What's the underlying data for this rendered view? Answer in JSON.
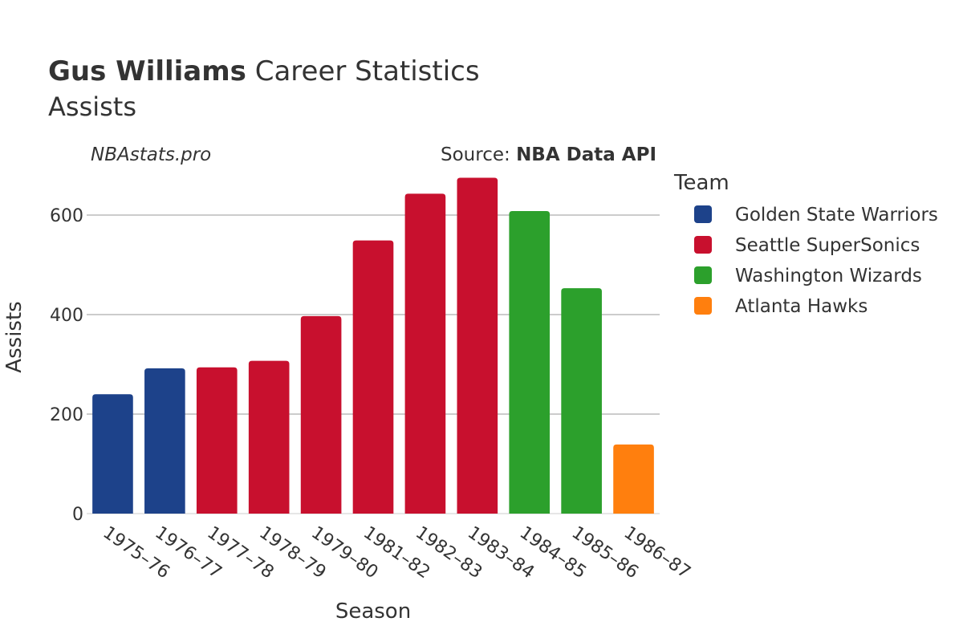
{
  "header": {
    "title_bold": "Gus Williams",
    "title_rest": " Career Statistics",
    "subtitle": "Assists",
    "watermark": "NBAstats.pro",
    "source_prefix": "Source: ",
    "source_name": "NBA Data API"
  },
  "legend": {
    "title": "Team",
    "items": [
      {
        "label": "Golden State Warriors",
        "color": "#1d428a"
      },
      {
        "label": "Seattle SuperSonics",
        "color": "#c8102e"
      },
      {
        "label": "Washington Wizards",
        "color": "#2ca02c"
      },
      {
        "label": "Atlanta Hawks",
        "color": "#ff7f0e"
      }
    ]
  },
  "chart_data": {
    "type": "bar",
    "xlabel": "Season",
    "ylabel": "Assists",
    "ylim": [
      0,
      700
    ],
    "yticks": [
      0,
      200,
      400,
      600
    ],
    "grid": true,
    "legend_position": "right",
    "categories": [
      "1975–76",
      "1976–77",
      "1977–78",
      "1978–79",
      "1979–80",
      "1981–82",
      "1982–83",
      "1983–84",
      "1984–85",
      "1985–86",
      "1986–87"
    ],
    "values": [
      240,
      292,
      294,
      307,
      397,
      549,
      643,
      675,
      608,
      453,
      139
    ],
    "teams": [
      "Golden State Warriors",
      "Golden State Warriors",
      "Seattle SuperSonics",
      "Seattle SuperSonics",
      "Seattle SuperSonics",
      "Seattle SuperSonics",
      "Seattle SuperSonics",
      "Seattle SuperSonics",
      "Washington Wizards",
      "Washington Wizards",
      "Atlanta Hawks"
    ]
  }
}
